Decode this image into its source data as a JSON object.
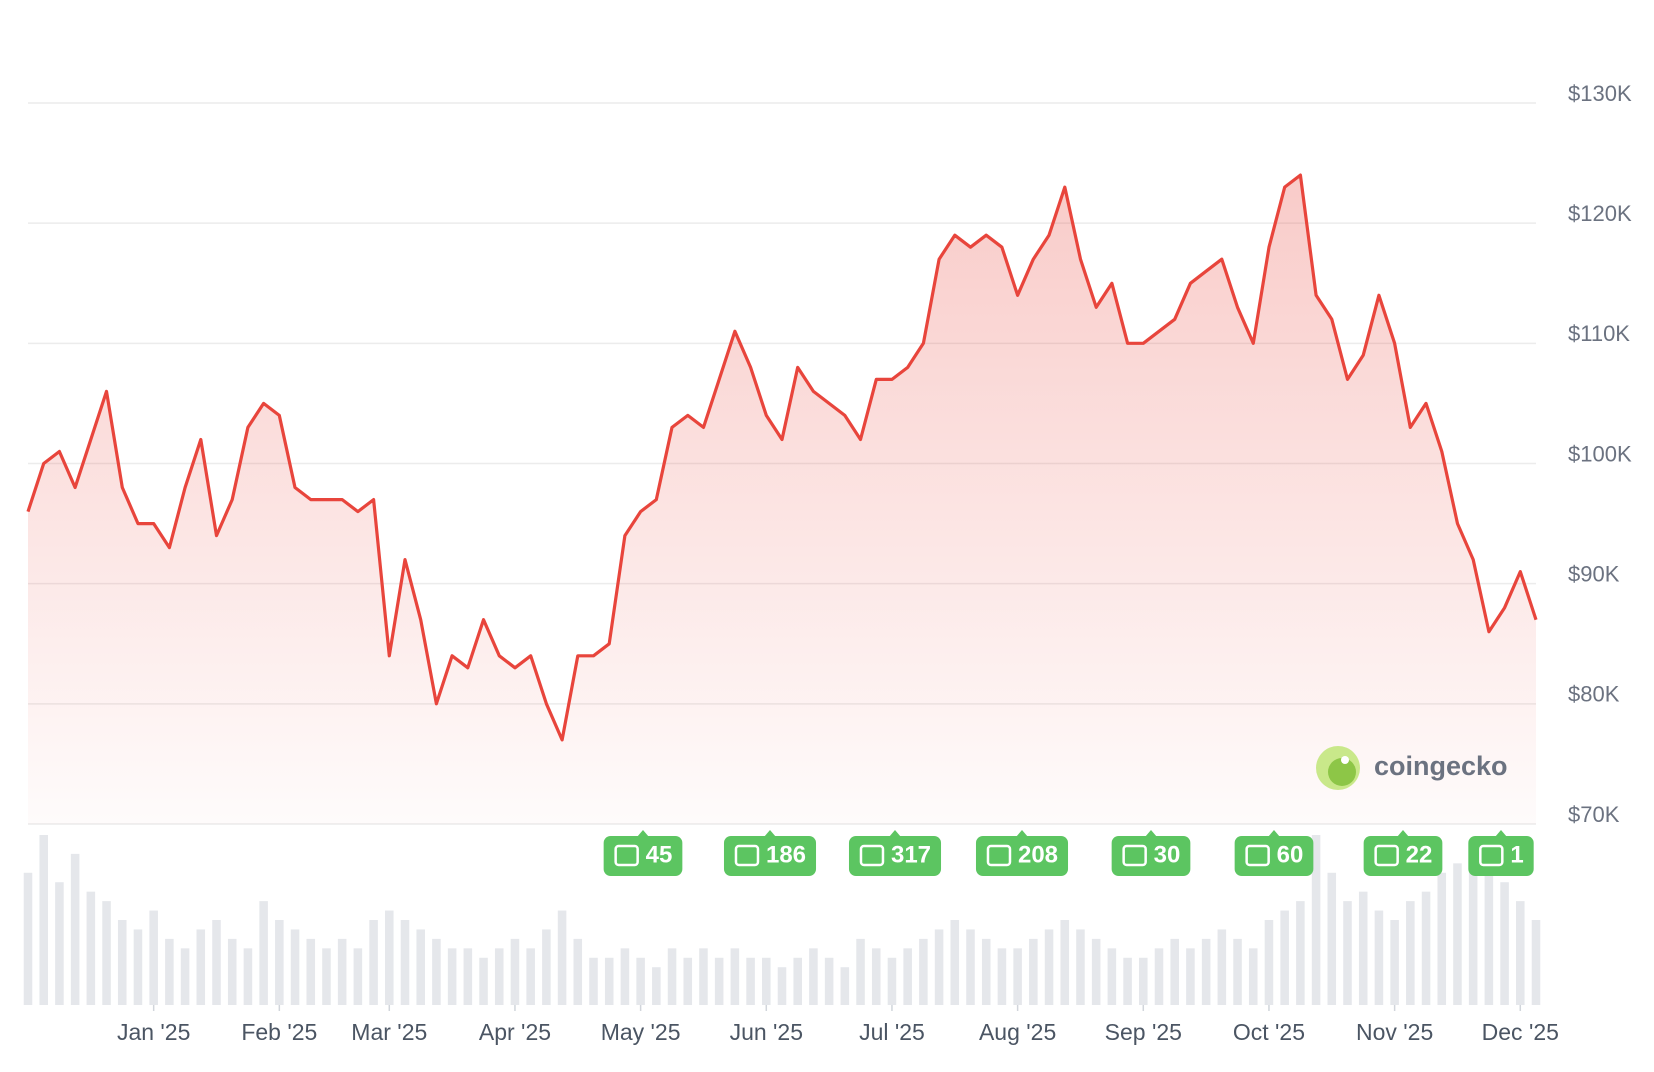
{
  "chart_data": {
    "type": "area",
    "color": "#e8453c",
    "values": [
      96000,
      100000,
      101000,
      98000,
      102000,
      106000,
      98000,
      95000,
      95000,
      93000,
      98000,
      102000,
      94000,
      97000,
      103000,
      105000,
      104000,
      98000,
      97000,
      97000,
      97000,
      96000,
      97000,
      84000,
      92000,
      87000,
      80000,
      84000,
      83000,
      87000,
      84000,
      83000,
      84000,
      80000,
      77000,
      84000,
      84000,
      85000,
      94000,
      96000,
      97000,
      103000,
      104000,
      103000,
      107000,
      111000,
      108000,
      104000,
      102000,
      108000,
      106000,
      105000,
      104000,
      102000,
      107000,
      107000,
      108000,
      110000,
      117000,
      119000,
      118000,
      119000,
      118000,
      114000,
      117000,
      119000,
      123000,
      117000,
      113000,
      115000,
      110000,
      110000,
      111000,
      112000,
      115000,
      116000,
      117000,
      113000,
      110000,
      118000,
      123000,
      124000,
      114000,
      112000,
      107000,
      109000,
      114000,
      110000,
      103000,
      105000,
      101000,
      95000,
      92000,
      86000,
      88000,
      91000,
      87000
    ],
    "volume": [
      70,
      90,
      65,
      80,
      60,
      55,
      45,
      40,
      50,
      35,
      30,
      40,
      45,
      35,
      30,
      55,
      45,
      40,
      35,
      30,
      35,
      30,
      45,
      50,
      45,
      40,
      35,
      30,
      30,
      25,
      30,
      35,
      30,
      40,
      50,
      35,
      25,
      25,
      30,
      25,
      20,
      30,
      25,
      30,
      25,
      30,
      25,
      25,
      20,
      25,
      30,
      25,
      20,
      35,
      30,
      25,
      30,
      35,
      40,
      45,
      40,
      35,
      30,
      30,
      35,
      40,
      45,
      40,
      35,
      30,
      25,
      25,
      30,
      35,
      30,
      35,
      40,
      35,
      30,
      45,
      50,
      55,
      90,
      70,
      55,
      60,
      50,
      45,
      55,
      60,
      70,
      75,
      80,
      70,
      65,
      55,
      45
    ],
    "ylim": [
      70000,
      130000
    ],
    "yticks": [
      {
        "value": 70000,
        "label": "$70K"
      },
      {
        "value": 80000,
        "label": "$80K"
      },
      {
        "value": 90000,
        "label": "$90K"
      },
      {
        "value": 100000,
        "label": "$100K"
      },
      {
        "value": 110000,
        "label": "$110K"
      },
      {
        "value": 120000,
        "label": "$120K"
      },
      {
        "value": 130000,
        "label": "$130K"
      }
    ],
    "xticks": [
      {
        "value": 8,
        "label": "Jan '25"
      },
      {
        "value": 16,
        "label": "Feb '25"
      },
      {
        "value": 23,
        "label": "Mar '25"
      },
      {
        "value": 31,
        "label": "Apr '25"
      },
      {
        "value": 39,
        "label": "May '25"
      },
      {
        "value": 47,
        "label": "Jun '25"
      },
      {
        "value": 55,
        "label": "Jul '25"
      },
      {
        "value": 63,
        "label": "Aug '25"
      },
      {
        "value": 71,
        "label": "Sep '25"
      },
      {
        "value": 79,
        "label": "Oct '25"
      },
      {
        "value": 87,
        "label": "Nov '25"
      },
      {
        "value": 95,
        "label": "Dec '25"
      }
    ],
    "grid": true,
    "news": [
      45,
      186,
      317,
      208,
      30,
      60,
      22,
      1
    ],
    "brand": "coingecko"
  }
}
